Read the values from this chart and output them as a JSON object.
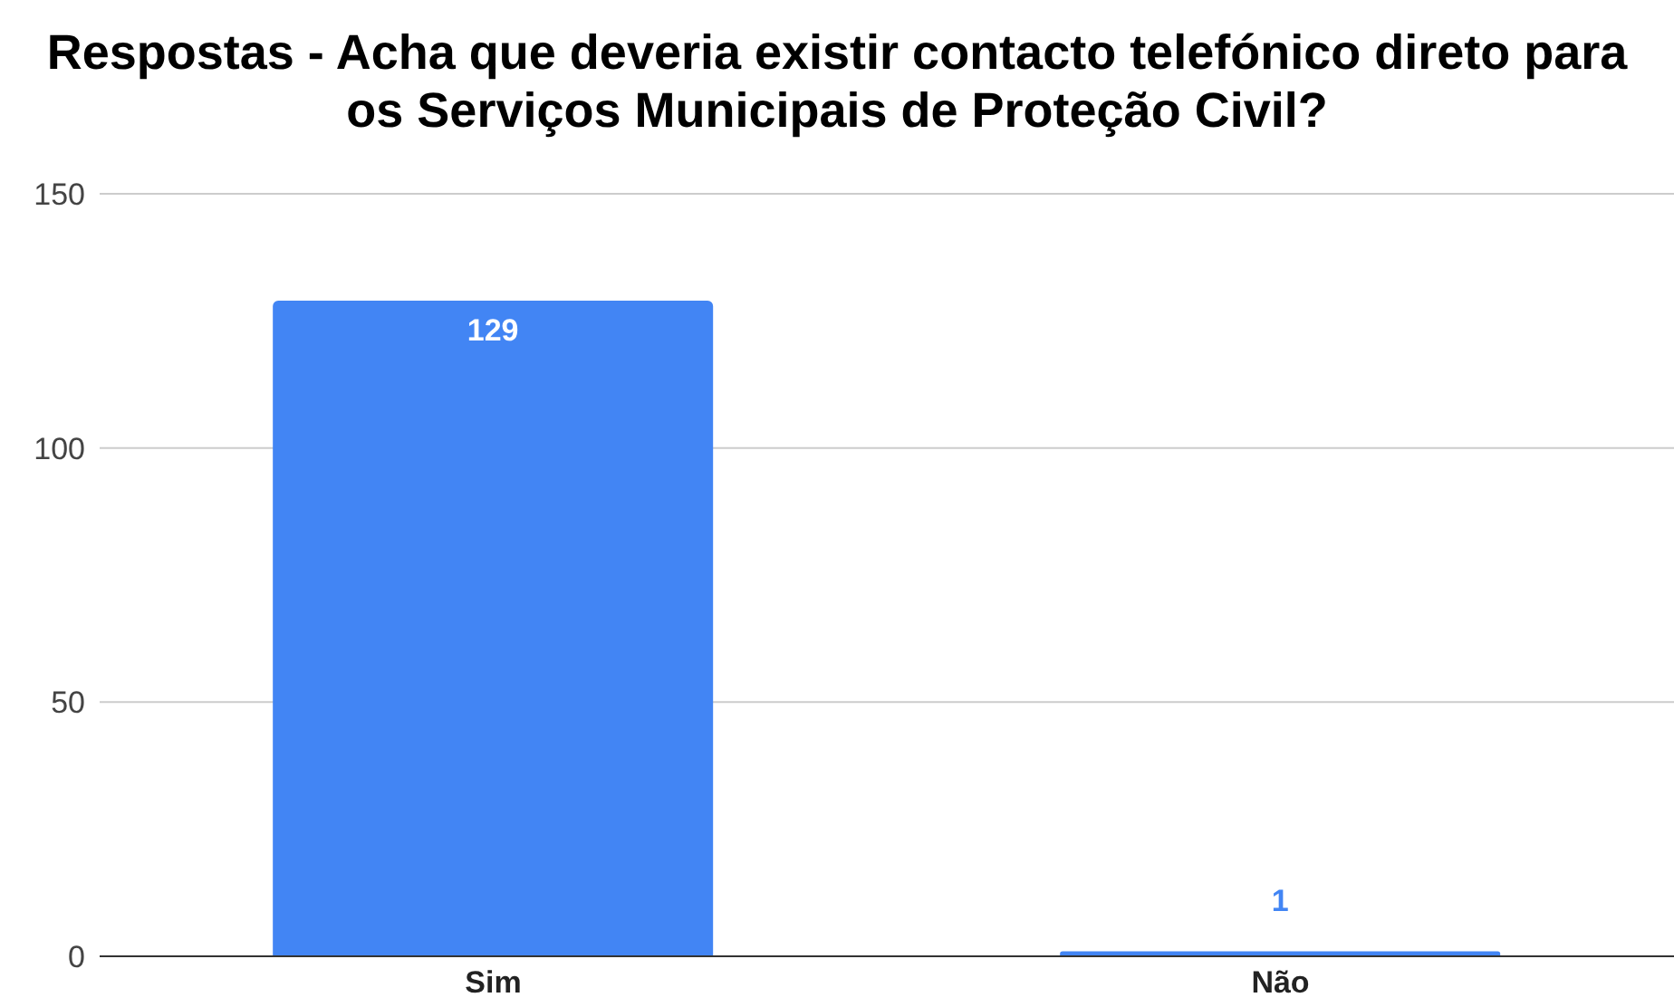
{
  "chart_data": {
    "type": "bar",
    "title": "Respostas - Acha que deveria existir contacto telefónico direto para os Serviços Municipais de Proteção Civil?",
    "categories": [
      "Sim",
      "Não"
    ],
    "values": [
      129,
      1
    ],
    "color": "#4285f4",
    "ylim": [
      0,
      150
    ],
    "yticks": [
      0,
      50,
      100,
      150
    ],
    "grid": "y",
    "data_labels": true
  }
}
